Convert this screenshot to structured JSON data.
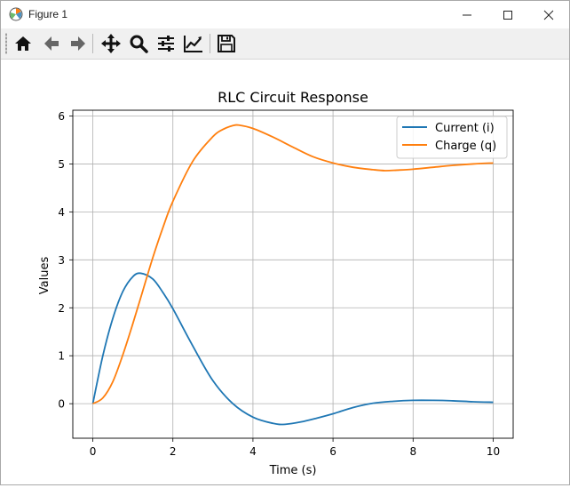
{
  "window": {
    "title": "Figure 1",
    "minimize_symbol": "—",
    "maximize_symbol": "☐",
    "close_symbol": "✕"
  },
  "toolbar": {
    "buttons": [
      {
        "icon": "home-icon",
        "action": "home"
      },
      {
        "icon": "back-arrow-icon",
        "action": "back"
      },
      {
        "icon": "forward-arrow-icon",
        "action": "forward"
      },
      {
        "icon": "pan-move-icon",
        "action": "pan"
      },
      {
        "icon": "zoom-magnifier-icon",
        "action": "zoom"
      },
      {
        "icon": "subplots-sliders-icon",
        "action": "configure subplots"
      },
      {
        "icon": "edit-axis-icon",
        "action": "edit axis"
      },
      {
        "icon": "save-disk-icon",
        "action": "save"
      }
    ]
  },
  "colors": {
    "current": "#1f77b4",
    "charge": "#ff7f0e",
    "grid": "#b0b0b0"
  },
  "chart_data": {
    "type": "line",
    "title": "RLC Circuit Response",
    "xlabel": "Time (s)",
    "ylabel": "Values",
    "xlim": [
      -0.5,
      10.5
    ],
    "ylim": [
      -0.72,
      6.12
    ],
    "xticks": [
      0,
      2,
      4,
      6,
      8,
      10
    ],
    "xtick_labels": [
      "0",
      "2",
      "4",
      "6",
      "8",
      "10"
    ],
    "yticks": [
      0,
      1,
      2,
      3,
      4,
      5,
      6
    ],
    "ytick_labels": [
      "0",
      "1",
      "2",
      "3",
      "4",
      "5",
      "6"
    ],
    "grid": true,
    "legend_position": "top-right",
    "series": [
      {
        "name": "Current (i)",
        "color": "#1f77b4",
        "x": [
          0,
          0.25,
          0.5,
          0.75,
          1.0,
          1.2,
          1.5,
          1.75,
          2.0,
          2.5,
          3.0,
          3.5,
          4.0,
          4.5,
          4.8,
          5.2,
          5.6,
          6.0,
          6.5,
          7.0,
          7.5,
          8.0,
          8.5,
          9.0,
          9.5,
          10.0
        ],
        "y": [
          0,
          1.0,
          1.78,
          2.34,
          2.65,
          2.72,
          2.6,
          2.32,
          1.98,
          1.2,
          0.48,
          0.0,
          -0.28,
          -0.41,
          -0.43,
          -0.38,
          -0.3,
          -0.21,
          -0.08,
          0.01,
          0.05,
          0.07,
          0.07,
          0.06,
          0.04,
          0.03
        ]
      },
      {
        "name": "Charge (q)",
        "color": "#ff7f0e",
        "x": [
          0,
          0.25,
          0.5,
          0.75,
          1.0,
          1.25,
          1.5,
          1.75,
          2.0,
          2.5,
          3.0,
          3.25,
          3.5,
          3.65,
          4.0,
          4.5,
          5.0,
          5.5,
          6.0,
          6.5,
          7.0,
          7.3,
          7.6,
          8.0,
          8.5,
          9.0,
          9.5,
          10.0
        ],
        "y": [
          0,
          0.12,
          0.46,
          1.02,
          1.67,
          2.36,
          3.05,
          3.67,
          4.22,
          5.06,
          5.57,
          5.72,
          5.8,
          5.81,
          5.74,
          5.56,
          5.35,
          5.15,
          5.02,
          4.93,
          4.88,
          4.86,
          4.87,
          4.89,
          4.93,
          4.97,
          5.0,
          5.02
        ]
      }
    ]
  }
}
